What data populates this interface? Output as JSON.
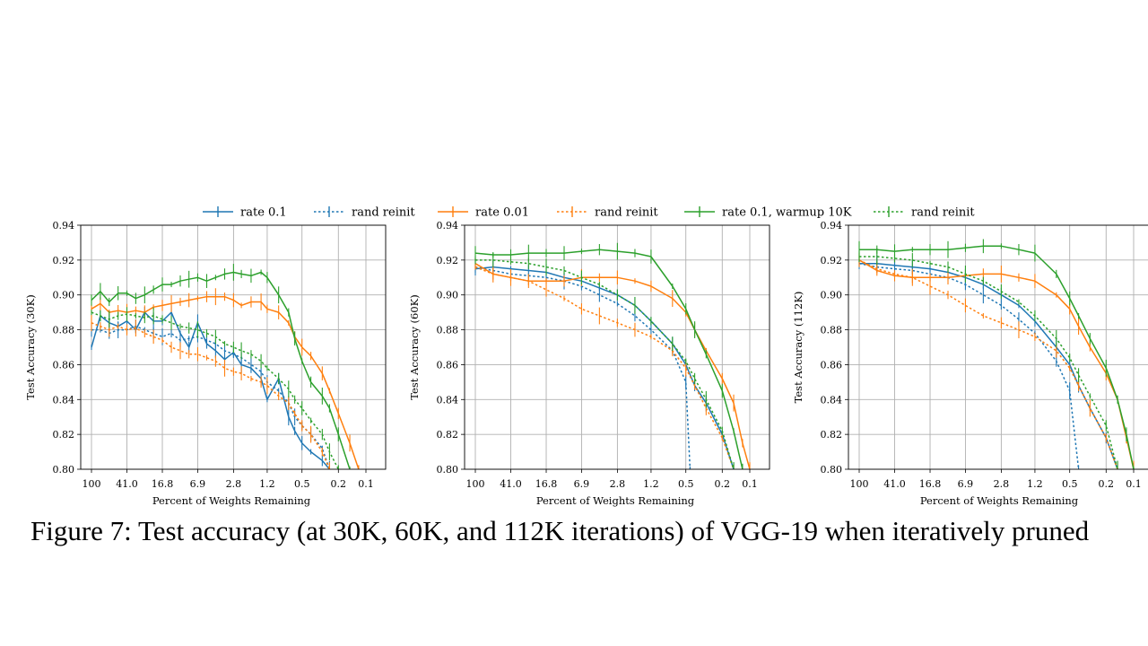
{
  "caption": "Figure 7: Test accuracy (at 30K, 60K, and 112K iterations) of VGG-19 when iteratively pruned",
  "colors": {
    "blue": "#1f77b4",
    "orange": "#ff7f0e",
    "green": "#2ca02c",
    "grid": "#b0b0b0"
  },
  "legend": [
    {
      "label": "rate 0.1",
      "color": "blue",
      "dash": false
    },
    {
      "label": "rand reinit",
      "color": "blue",
      "dash": true
    },
    {
      "label": "rate 0.01",
      "color": "orange",
      "dash": false
    },
    {
      "label": "rand reinit",
      "color": "orange",
      "dash": true
    },
    {
      "label": "rate 0.1, warmup 10K",
      "color": "green",
      "dash": false
    },
    {
      "label": "rand reinit",
      "color": "green",
      "dash": true
    }
  ],
  "chart_data": [
    {
      "type": "line",
      "ylabel": "Test Accuracy (30K)",
      "xlabel": "Percent of Weights Remaining",
      "ylim": [
        0.8,
        0.94
      ],
      "yticks": [
        "0.80",
        "0.82",
        "0.84",
        "0.86",
        "0.88",
        "0.90",
        "0.92",
        "0.94"
      ],
      "xticks": [
        "100",
        "41.0",
        "16.8",
        "6.9",
        "2.8",
        "1.2",
        "0.5",
        "0.2",
        "0.1"
      ],
      "grid": true,
      "series": [
        {
          "color": "blue",
          "dash": false,
          "x": [
            100,
            80,
            64,
            51.2,
            41,
            32.8,
            26.2,
            21,
            16.8,
            13.4,
            10.7,
            8.6,
            6.9,
            5.5,
            4.4,
            3.5,
            2.8,
            2.3,
            1.8,
            1.4,
            1.2,
            0.9,
            0.7,
            0.6,
            0.5,
            0.4,
            0.3,
            0.25
          ],
          "y": [
            0.87,
            0.888,
            0.884,
            0.882,
            0.885,
            0.88,
            0.89,
            0.885,
            0.885,
            0.89,
            0.878,
            0.87,
            0.884,
            0.872,
            0.868,
            0.863,
            0.867,
            0.86,
            0.858,
            0.852,
            0.84,
            0.852,
            0.83,
            0.822,
            0.815,
            0.81,
            0.805,
            0.8
          ]
        },
        {
          "color": "blue",
          "dash": true,
          "x": [
            100,
            80,
            64,
            51.2,
            41,
            32.8,
            26.2,
            21,
            16.8,
            13.4,
            10.7,
            8.6,
            6.9,
            5.5,
            4.4,
            3.5,
            2.8,
            2.3,
            1.8,
            1.4,
            1.2,
            0.9,
            0.7,
            0.6,
            0.5,
            0.4,
            0.3,
            0.25
          ],
          "y": [
            0.88,
            0.88,
            0.878,
            0.88,
            0.88,
            0.882,
            0.88,
            0.878,
            0.876,
            0.878,
            0.874,
            0.875,
            0.876,
            0.874,
            0.872,
            0.868,
            0.866,
            0.864,
            0.86,
            0.856,
            0.85,
            0.845,
            0.838,
            0.83,
            0.825,
            0.82,
            0.812,
            0.8
          ]
        },
        {
          "color": "orange",
          "dash": false,
          "x": [
            100,
            80,
            64,
            51.2,
            41,
            32.8,
            26.2,
            21,
            16.8,
            13.4,
            10.7,
            8.6,
            6.9,
            5.5,
            4.4,
            3.5,
            2.8,
            2.3,
            1.8,
            1.4,
            1.2,
            0.9,
            0.7,
            0.6,
            0.5,
            0.4,
            0.3,
            0.25,
            0.2,
            0.15,
            0.12
          ],
          "y": [
            0.892,
            0.895,
            0.89,
            0.891,
            0.89,
            0.891,
            0.89,
            0.893,
            0.894,
            0.895,
            0.896,
            0.897,
            0.898,
            0.899,
            0.899,
            0.899,
            0.897,
            0.894,
            0.896,
            0.896,
            0.892,
            0.89,
            0.884,
            0.876,
            0.87,
            0.865,
            0.855,
            0.845,
            0.832,
            0.815,
            0.8
          ]
        },
        {
          "color": "orange",
          "dash": true,
          "x": [
            100,
            80,
            64,
            51.2,
            41,
            32.8,
            26.2,
            21,
            16.8,
            13.4,
            10.7,
            8.6,
            6.9,
            5.5,
            4.4,
            3.5,
            2.8,
            2.3,
            1.8,
            1.4,
            1.2,
            0.9,
            0.7,
            0.6,
            0.5,
            0.4,
            0.3,
            0.25
          ],
          "y": [
            0.884,
            0.882,
            0.88,
            0.882,
            0.88,
            0.881,
            0.878,
            0.876,
            0.874,
            0.87,
            0.868,
            0.866,
            0.866,
            0.864,
            0.862,
            0.858,
            0.856,
            0.855,
            0.852,
            0.85,
            0.848,
            0.842,
            0.838,
            0.832,
            0.825,
            0.82,
            0.81,
            0.8
          ]
        },
        {
          "color": "green",
          "dash": false,
          "x": [
            100,
            80,
            64,
            51.2,
            41,
            32.8,
            26.2,
            21,
            16.8,
            13.4,
            10.7,
            8.6,
            6.9,
            5.5,
            4.4,
            3.5,
            2.8,
            2.3,
            1.8,
            1.4,
            1.2,
            0.9,
            0.7,
            0.6,
            0.5,
            0.4,
            0.3,
            0.25,
            0.2,
            0.15
          ],
          "y": [
            0.897,
            0.902,
            0.896,
            0.901,
            0.901,
            0.898,
            0.9,
            0.903,
            0.906,
            0.906,
            0.908,
            0.909,
            0.91,
            0.908,
            0.91,
            0.912,
            0.913,
            0.912,
            0.911,
            0.913,
            0.91,
            0.9,
            0.89,
            0.875,
            0.862,
            0.85,
            0.842,
            0.835,
            0.82,
            0.8
          ]
        },
        {
          "color": "green",
          "dash": true,
          "x": [
            100,
            80,
            64,
            51.2,
            41,
            32.8,
            26.2,
            21,
            16.8,
            13.4,
            10.7,
            8.6,
            6.9,
            5.5,
            4.4,
            3.5,
            2.8,
            2.3,
            1.8,
            1.4,
            1.2,
            0.9,
            0.7,
            0.6,
            0.5,
            0.4,
            0.3,
            0.25,
            0.2
          ],
          "y": [
            0.89,
            0.888,
            0.886,
            0.888,
            0.889,
            0.888,
            0.887,
            0.888,
            0.886,
            0.884,
            0.882,
            0.881,
            0.88,
            0.878,
            0.876,
            0.872,
            0.87,
            0.868,
            0.866,
            0.862,
            0.858,
            0.852,
            0.846,
            0.84,
            0.835,
            0.828,
            0.82,
            0.81,
            0.8
          ]
        }
      ]
    },
    {
      "type": "line",
      "ylabel": "Test Accuracy (60K)",
      "xlabel": "Percent of Weights Remaining",
      "ylim": [
        0.8,
        0.94
      ],
      "yticks": [
        "0.80",
        "0.82",
        "0.84",
        "0.86",
        "0.88",
        "0.90",
        "0.92",
        "0.94"
      ],
      "xticks": [
        "100",
        "41.0",
        "16.8",
        "6.9",
        "2.8",
        "1.2",
        "0.5",
        "0.2",
        "0.1"
      ],
      "grid": true,
      "series": [
        {
          "color": "blue",
          "dash": false,
          "x": [
            100,
            64,
            41,
            26.2,
            16.8,
            10.7,
            6.9,
            4.4,
            2.8,
            1.8,
            1.2,
            0.7,
            0.5,
            0.4,
            0.3,
            0.2,
            0.15
          ],
          "y": [
            0.915,
            0.916,
            0.915,
            0.914,
            0.913,
            0.91,
            0.908,
            0.904,
            0.9,
            0.894,
            0.885,
            0.872,
            0.86,
            0.848,
            0.838,
            0.82,
            0.8
          ]
        },
        {
          "color": "blue",
          "dash": true,
          "x": [
            100,
            64,
            41,
            26.2,
            16.8,
            10.7,
            6.9,
            4.4,
            2.8,
            1.8,
            1.2,
            0.7,
            0.5,
            0.45
          ],
          "y": [
            0.916,
            0.914,
            0.912,
            0.911,
            0.91,
            0.908,
            0.905,
            0.9,
            0.895,
            0.888,
            0.88,
            0.868,
            0.85,
            0.8
          ]
        },
        {
          "color": "orange",
          "dash": false,
          "x": [
            100,
            64,
            41,
            26.2,
            16.8,
            10.7,
            6.9,
            4.4,
            2.8,
            1.8,
            1.2,
            0.7,
            0.5,
            0.4,
            0.3,
            0.2,
            0.15,
            0.12,
            0.1
          ],
          "y": [
            0.918,
            0.912,
            0.91,
            0.908,
            0.908,
            0.908,
            0.91,
            0.91,
            0.91,
            0.908,
            0.905,
            0.898,
            0.89,
            0.88,
            0.868,
            0.852,
            0.838,
            0.815,
            0.8
          ]
        },
        {
          "color": "orange",
          "dash": true,
          "x": [
            100,
            64,
            41,
            26.2,
            16.8,
            10.7,
            6.9,
            4.4,
            2.8,
            1.8,
            1.2,
            0.7,
            0.5,
            0.4,
            0.3,
            0.2,
            0.15
          ],
          "y": [
            0.916,
            0.912,
            0.91,
            0.908,
            0.903,
            0.898,
            0.892,
            0.888,
            0.884,
            0.88,
            0.876,
            0.868,
            0.858,
            0.848,
            0.835,
            0.818,
            0.8
          ]
        },
        {
          "color": "green",
          "dash": false,
          "x": [
            100,
            64,
            41,
            26.2,
            16.8,
            10.7,
            6.9,
            4.4,
            2.8,
            1.8,
            1.2,
            0.7,
            0.5,
            0.4,
            0.3,
            0.2,
            0.15,
            0.12
          ],
          "y": [
            0.924,
            0.923,
            0.923,
            0.924,
            0.924,
            0.924,
            0.925,
            0.926,
            0.925,
            0.924,
            0.922,
            0.905,
            0.892,
            0.88,
            0.866,
            0.845,
            0.822,
            0.8
          ]
        },
        {
          "color": "green",
          "dash": true,
          "x": [
            100,
            64,
            41,
            26.2,
            16.8,
            10.7,
            6.9,
            4.4,
            2.8,
            1.8,
            1.2,
            0.7,
            0.5,
            0.4,
            0.3,
            0.2,
            0.15
          ],
          "y": [
            0.92,
            0.92,
            0.919,
            0.918,
            0.916,
            0.914,
            0.91,
            0.906,
            0.9,
            0.894,
            0.885,
            0.872,
            0.862,
            0.852,
            0.84,
            0.822,
            0.8
          ]
        }
      ]
    },
    {
      "type": "line",
      "ylabel": "Test Accuracy (112K)",
      "xlabel": "Percent of Weights Remaining",
      "ylim": [
        0.8,
        0.94
      ],
      "yticks": [
        "0.80",
        "0.82",
        "0.84",
        "0.86",
        "0.88",
        "0.90",
        "0.92",
        "0.94"
      ],
      "xticks": [
        "100",
        "41.0",
        "16.8",
        "6.9",
        "2.8",
        "1.2",
        "0.5",
        "0.2",
        "0.1"
      ],
      "grid": true,
      "series": [
        {
          "color": "blue",
          "dash": false,
          "x": [
            100,
            64,
            41,
            26.2,
            16.8,
            10.7,
            6.9,
            4.4,
            2.8,
            1.8,
            1.2,
            0.7,
            0.5,
            0.4,
            0.3,
            0.2,
            0.15
          ],
          "y": [
            0.918,
            0.918,
            0.917,
            0.916,
            0.915,
            0.913,
            0.91,
            0.906,
            0.9,
            0.894,
            0.885,
            0.87,
            0.86,
            0.848,
            0.835,
            0.818,
            0.8
          ]
        },
        {
          "color": "blue",
          "dash": true,
          "x": [
            100,
            64,
            41,
            26.2,
            16.8,
            10.7,
            6.9,
            4.4,
            2.8,
            1.8,
            1.2,
            0.7,
            0.5,
            0.4
          ],
          "y": [
            0.918,
            0.916,
            0.915,
            0.914,
            0.912,
            0.91,
            0.906,
            0.9,
            0.894,
            0.886,
            0.878,
            0.862,
            0.845,
            0.8
          ]
        },
        {
          "color": "orange",
          "dash": false,
          "x": [
            100,
            64,
            41,
            26.2,
            16.8,
            10.7,
            6.9,
            4.4,
            2.8,
            1.8,
            1.2,
            0.7,
            0.5,
            0.4,
            0.3,
            0.2,
            0.15,
            0.12,
            0.1
          ],
          "y": [
            0.92,
            0.914,
            0.911,
            0.91,
            0.91,
            0.91,
            0.911,
            0.912,
            0.912,
            0.91,
            0.908,
            0.9,
            0.892,
            0.882,
            0.87,
            0.855,
            0.84,
            0.818,
            0.8
          ]
        },
        {
          "color": "orange",
          "dash": true,
          "x": [
            100,
            64,
            41,
            26.2,
            16.8,
            10.7,
            6.9,
            4.4,
            2.8,
            1.8,
            1.2,
            0.7,
            0.5,
            0.4,
            0.3,
            0.2,
            0.15
          ],
          "y": [
            0.92,
            0.915,
            0.912,
            0.91,
            0.905,
            0.9,
            0.894,
            0.888,
            0.884,
            0.88,
            0.876,
            0.868,
            0.858,
            0.848,
            0.835,
            0.818,
            0.8
          ]
        },
        {
          "color": "green",
          "dash": false,
          "x": [
            100,
            64,
            41,
            26.2,
            16.8,
            10.7,
            6.9,
            4.4,
            2.8,
            1.8,
            1.2,
            0.7,
            0.5,
            0.4,
            0.3,
            0.2,
            0.15,
            0.12,
            0.1
          ],
          "y": [
            0.926,
            0.926,
            0.925,
            0.926,
            0.926,
            0.926,
            0.927,
            0.928,
            0.928,
            0.926,
            0.924,
            0.912,
            0.898,
            0.888,
            0.875,
            0.858,
            0.84,
            0.82,
            0.8
          ]
        },
        {
          "color": "green",
          "dash": true,
          "x": [
            100,
            64,
            41,
            26.2,
            16.8,
            10.7,
            6.9,
            4.4,
            2.8,
            1.8,
            1.2,
            0.7,
            0.5,
            0.4,
            0.3,
            0.2,
            0.15
          ],
          "y": [
            0.922,
            0.922,
            0.921,
            0.92,
            0.918,
            0.916,
            0.912,
            0.908,
            0.902,
            0.896,
            0.888,
            0.875,
            0.864,
            0.854,
            0.842,
            0.825,
            0.8
          ]
        }
      ]
    }
  ]
}
